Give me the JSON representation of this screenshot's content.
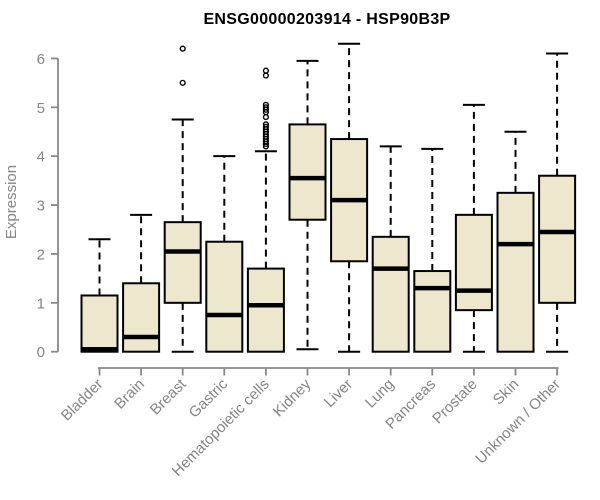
{
  "chart_data": {
    "type": "boxplot",
    "title": "ENSG00000203914 - HSP90B3P",
    "ylabel": "Expression",
    "xlabel": "",
    "ylim": [
      0,
      6.4
    ],
    "yticks": [
      0,
      1,
      2,
      3,
      4,
      5,
      6
    ],
    "grid": false,
    "legend": false,
    "categories": [
      "Bladder",
      "Brain",
      "Breast",
      "Gastric",
      "Hematopoietic cells",
      "Kidney",
      "Liver",
      "Lung",
      "Pancreas",
      "Prostate",
      "Skin",
      "Unknown / Other"
    ],
    "boxes": [
      {
        "whislo": 0,
        "q1": 0,
        "med": 0.05,
        "q3": 1.15,
        "whishi": 2.3,
        "outliers": []
      },
      {
        "whislo": 0,
        "q1": 0,
        "med": 0.3,
        "q3": 1.4,
        "whishi": 2.8,
        "outliers": []
      },
      {
        "whislo": 0,
        "q1": 1.0,
        "med": 2.05,
        "q3": 2.65,
        "whishi": 4.75,
        "outliers": [
          5.5,
          6.2
        ]
      },
      {
        "whislo": 0,
        "q1": 0,
        "med": 0.75,
        "q3": 2.25,
        "whishi": 4.0,
        "outliers": []
      },
      {
        "whislo": 0,
        "q1": 0,
        "med": 0.95,
        "q3": 1.7,
        "whishi": 4.1,
        "outliers": [
          4.2,
          4.25,
          4.3,
          4.35,
          4.4,
          4.45,
          4.5,
          4.55,
          4.6,
          4.65,
          4.8,
          4.9,
          4.95,
          5.0,
          5.05,
          5.65,
          5.75
        ]
      },
      {
        "whislo": 0.05,
        "q1": 2.7,
        "med": 3.55,
        "q3": 4.65,
        "whishi": 5.95,
        "outliers": []
      },
      {
        "whislo": 0,
        "q1": 1.85,
        "med": 3.1,
        "q3": 4.35,
        "whishi": 6.3,
        "outliers": []
      },
      {
        "whislo": 0,
        "q1": 0,
        "med": 1.7,
        "q3": 2.35,
        "whishi": 4.2,
        "outliers": []
      },
      {
        "whislo": 0,
        "q1": 0,
        "med": 1.3,
        "q3": 1.65,
        "whishi": 4.15,
        "outliers": []
      },
      {
        "whislo": 0,
        "q1": 0.85,
        "med": 1.25,
        "q3": 2.8,
        "whishi": 5.05,
        "outliers": []
      },
      {
        "whislo": 0,
        "q1": 0,
        "med": 2.2,
        "q3": 3.25,
        "whishi": 4.5,
        "outliers": []
      },
      {
        "whislo": 0,
        "q1": 1.0,
        "med": 2.45,
        "q3": 3.6,
        "whishi": 6.1,
        "outliers": []
      }
    ],
    "colors": {
      "box_fill": "#EDE8CD",
      "box_border": "#000000",
      "median": "#000000",
      "whisker": "#000000",
      "outlier": "#000000",
      "axis": "#888888",
      "tick_label": "#858585",
      "title": "#000000",
      "background": "#FFFFFF"
    }
  }
}
